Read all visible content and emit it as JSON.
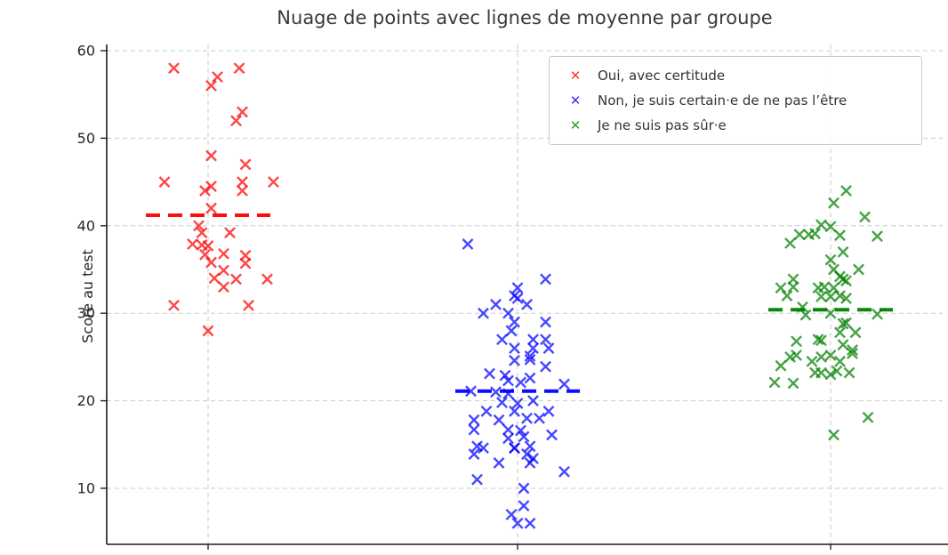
{
  "chart_data": {
    "type": "scatter",
    "title": "Nuage de points avec lignes de moyenne par groupe",
    "ylabel": "Score au test",
    "xlabel": "",
    "ylim": [
      3.5,
      61
    ],
    "yticks": [
      10,
      20,
      30,
      40,
      50,
      60
    ],
    "grid": true,
    "legend_position": "upper right",
    "marker": "x",
    "mean_line_halfwidth": 0.2,
    "groups": [
      {
        "name": "Oui, avec certitude",
        "color": "#ff0000",
        "mean": 41.2,
        "points": [
          [
            -0.11,
            58
          ],
          [
            0.1,
            58
          ],
          [
            0.03,
            57
          ],
          [
            0.01,
            56
          ],
          [
            0.11,
            53
          ],
          [
            0.09,
            52
          ],
          [
            0.01,
            48
          ],
          [
            0.12,
            47
          ],
          [
            -0.14,
            45
          ],
          [
            0.11,
            45
          ],
          [
            0.21,
            45
          ],
          [
            0.01,
            44.5
          ],
          [
            -0.01,
            44
          ],
          [
            0.11,
            44
          ],
          [
            0.01,
            42
          ],
          [
            -0.03,
            40
          ],
          [
            -0.02,
            39.2
          ],
          [
            0.07,
            39.2
          ],
          [
            -0.05,
            37.9
          ],
          [
            -0.02,
            37.8
          ],
          [
            0.0,
            37.7
          ],
          [
            -0.01,
            36.7
          ],
          [
            0.05,
            36.8
          ],
          [
            0.12,
            36.6
          ],
          [
            0.01,
            35.8
          ],
          [
            0.12,
            35.7
          ],
          [
            0.05,
            34.9
          ],
          [
            0.02,
            34
          ],
          [
            0.09,
            33.9
          ],
          [
            0.19,
            33.9
          ],
          [
            0.05,
            33
          ],
          [
            -0.11,
            30.9
          ],
          [
            0.13,
            30.9
          ],
          [
            0.0,
            28
          ]
        ]
      },
      {
        "name": "Non, je suis certain·e de ne pas l’être",
        "color": "#0000ff",
        "mean": 21.1,
        "points": [
          [
            -0.16,
            37.9
          ],
          [
            0.09,
            33.9
          ],
          [
            0.0,
            32.9
          ],
          [
            -0.01,
            32
          ],
          [
            0.0,
            31.7
          ],
          [
            -0.07,
            31
          ],
          [
            0.03,
            31
          ],
          [
            -0.11,
            30
          ],
          [
            -0.03,
            30
          ],
          [
            -0.01,
            29
          ],
          [
            0.09,
            29
          ],
          [
            -0.02,
            28
          ],
          [
            -0.05,
            27
          ],
          [
            0.05,
            27
          ],
          [
            0.09,
            27
          ],
          [
            -0.01,
            26
          ],
          [
            0.05,
            26
          ],
          [
            0.1,
            26
          ],
          [
            0.04,
            25.1
          ],
          [
            -0.01,
            24.6
          ],
          [
            0.04,
            24.7
          ],
          [
            0.09,
            23.9
          ],
          [
            -0.09,
            23.1
          ],
          [
            -0.04,
            22.9
          ],
          [
            -0.03,
            22.3
          ],
          [
            0.01,
            22.1
          ],
          [
            0.04,
            22.6
          ],
          [
            0.15,
            21.9
          ],
          [
            -0.15,
            21.1
          ],
          [
            -0.07,
            21
          ],
          [
            -0.03,
            20.8
          ],
          [
            -0.05,
            19.8
          ],
          [
            0.0,
            19.7
          ],
          [
            0.05,
            20
          ],
          [
            -0.1,
            18.8
          ],
          [
            -0.01,
            18.8
          ],
          [
            0.1,
            18.8
          ],
          [
            -0.14,
            17.8
          ],
          [
            -0.06,
            17.8
          ],
          [
            0.03,
            18
          ],
          [
            0.07,
            18
          ],
          [
            -0.14,
            16.7
          ],
          [
            -0.03,
            16.7
          ],
          [
            0.01,
            16.6
          ],
          [
            -0.03,
            15.7
          ],
          [
            0.02,
            15.9
          ],
          [
            0.11,
            16.1
          ],
          [
            -0.13,
            14.8
          ],
          [
            -0.01,
            14.6
          ],
          [
            0.04,
            14.8
          ],
          [
            -0.14,
            13.9
          ],
          [
            -0.11,
            14.6
          ],
          [
            -0.06,
            12.9
          ],
          [
            -0.01,
            14.6
          ],
          [
            0.03,
            13.9
          ],
          [
            0.05,
            13.4
          ],
          [
            0.04,
            12.9
          ],
          [
            0.15,
            11.9
          ],
          [
            -0.13,
            11
          ],
          [
            0.02,
            10
          ],
          [
            0.02,
            8
          ],
          [
            -0.02,
            7
          ],
          [
            0.0,
            6
          ],
          [
            0.04,
            6
          ]
        ]
      },
      {
        "name": "Je ne suis pas sûr·e",
        "color": "#008000",
        "mean": 30.4,
        "points": [
          [
            0.05,
            44
          ],
          [
            0.01,
            42.6
          ],
          [
            0.11,
            41
          ],
          [
            -0.03,
            40.1
          ],
          [
            0.0,
            39.9
          ],
          [
            0.03,
            38.9
          ],
          [
            0.15,
            38.8
          ],
          [
            -0.1,
            39
          ],
          [
            -0.07,
            39
          ],
          [
            -0.05,
            39.1
          ],
          [
            -0.13,
            38
          ],
          [
            0.04,
            37
          ],
          [
            0.0,
            36.1
          ],
          [
            0.01,
            35
          ],
          [
            0.09,
            35
          ],
          [
            0.03,
            34.2
          ],
          [
            -0.12,
            33.9
          ],
          [
            -0.16,
            32.9
          ],
          [
            -0.14,
            32
          ],
          [
            -0.12,
            33
          ],
          [
            -0.04,
            32.9
          ],
          [
            -0.02,
            33
          ],
          [
            0.01,
            32.9
          ],
          [
            0.04,
            33.9
          ],
          [
            0.05,
            33.7
          ],
          [
            -0.03,
            31.9
          ],
          [
            0.0,
            31.9
          ],
          [
            0.03,
            32
          ],
          [
            0.05,
            31.7
          ],
          [
            -0.09,
            30.7
          ],
          [
            -0.08,
            29.8
          ],
          [
            0.0,
            30
          ],
          [
            0.15,
            29.9
          ],
          [
            0.04,
            28.8
          ],
          [
            0.05,
            28.9
          ],
          [
            0.03,
            27.8
          ],
          [
            0.08,
            27.8
          ],
          [
            -0.11,
            26.8
          ],
          [
            -0.04,
            27
          ],
          [
            -0.03,
            26.9
          ],
          [
            0.04,
            26.4
          ],
          [
            0.07,
            25.8
          ],
          [
            -0.13,
            25
          ],
          [
            -0.11,
            25.2
          ],
          [
            -0.06,
            24.5
          ],
          [
            -0.03,
            25
          ],
          [
            0.0,
            25.2
          ],
          [
            0.03,
            24.5
          ],
          [
            0.07,
            25.4
          ],
          [
            -0.16,
            24
          ],
          [
            -0.05,
            23.2
          ],
          [
            -0.03,
            23.2
          ],
          [
            0.0,
            23
          ],
          [
            0.02,
            23.4
          ],
          [
            0.06,
            23.2
          ],
          [
            -0.18,
            22.1
          ],
          [
            -0.12,
            22
          ],
          [
            0.12,
            18.1
          ],
          [
            0.01,
            16.1
          ]
        ]
      }
    ]
  }
}
